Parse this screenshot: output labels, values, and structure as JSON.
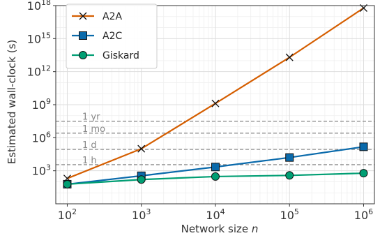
{
  "chart_data": {
    "type": "line",
    "xlabel": "Network size",
    "xlabel_var": "n",
    "ylabel": "Estimated wall-clock (s)",
    "xscale": "log",
    "yscale": "log",
    "xlim": [
      70,
      1400000
    ],
    "ylim": [
      1,
      1e+18
    ],
    "grid": true,
    "legend_position": "top-left",
    "x_ticks": [
      {
        "base": "10",
        "exp": "2",
        "value": 100
      },
      {
        "base": "10",
        "exp": "3",
        "value": 1000
      },
      {
        "base": "10",
        "exp": "4",
        "value": 10000
      },
      {
        "base": "10",
        "exp": "5",
        "value": 100000
      },
      {
        "base": "10",
        "exp": "6",
        "value": 1000000
      }
    ],
    "y_ticks": [
      {
        "base": "10",
        "exp": "3",
        "value": 1000
      },
      {
        "base": "10",
        "exp": "6",
        "value": 1000000
      },
      {
        "base": "10",
        "exp": "9",
        "value": 1000000000
      },
      {
        "base": "10",
        "exp": "12",
        "value": 1000000000000.0
      },
      {
        "base": "10",
        "exp": "15",
        "value": 1000000000000000.0
      },
      {
        "base": "10",
        "exp": "18",
        "value": 1e+18
      }
    ],
    "x": [
      100,
      1000,
      10000,
      100000,
      1000000
    ],
    "series": [
      {
        "name": "A2A",
        "color": "#d55e00",
        "marker": "x",
        "values": [
          200,
          100000,
          1300000000.0,
          20000000000000.0,
          6e+17
        ]
      },
      {
        "name": "A2C",
        "color": "#0a6aab",
        "marker": "square",
        "values": [
          60,
          350,
          2200,
          16000,
          150000
        ]
      },
      {
        "name": "Giskard",
        "color": "#009e73",
        "marker": "circle",
        "values": [
          60,
          160,
          300,
          380,
          600
        ]
      }
    ],
    "reference_lines": [
      {
        "label": "1 yr",
        "value": 31536000
      },
      {
        "label": "1 mo",
        "value": 2592000
      },
      {
        "label": "1 d",
        "value": 86400
      },
      {
        "label": "1 h",
        "value": 3600
      }
    ]
  }
}
